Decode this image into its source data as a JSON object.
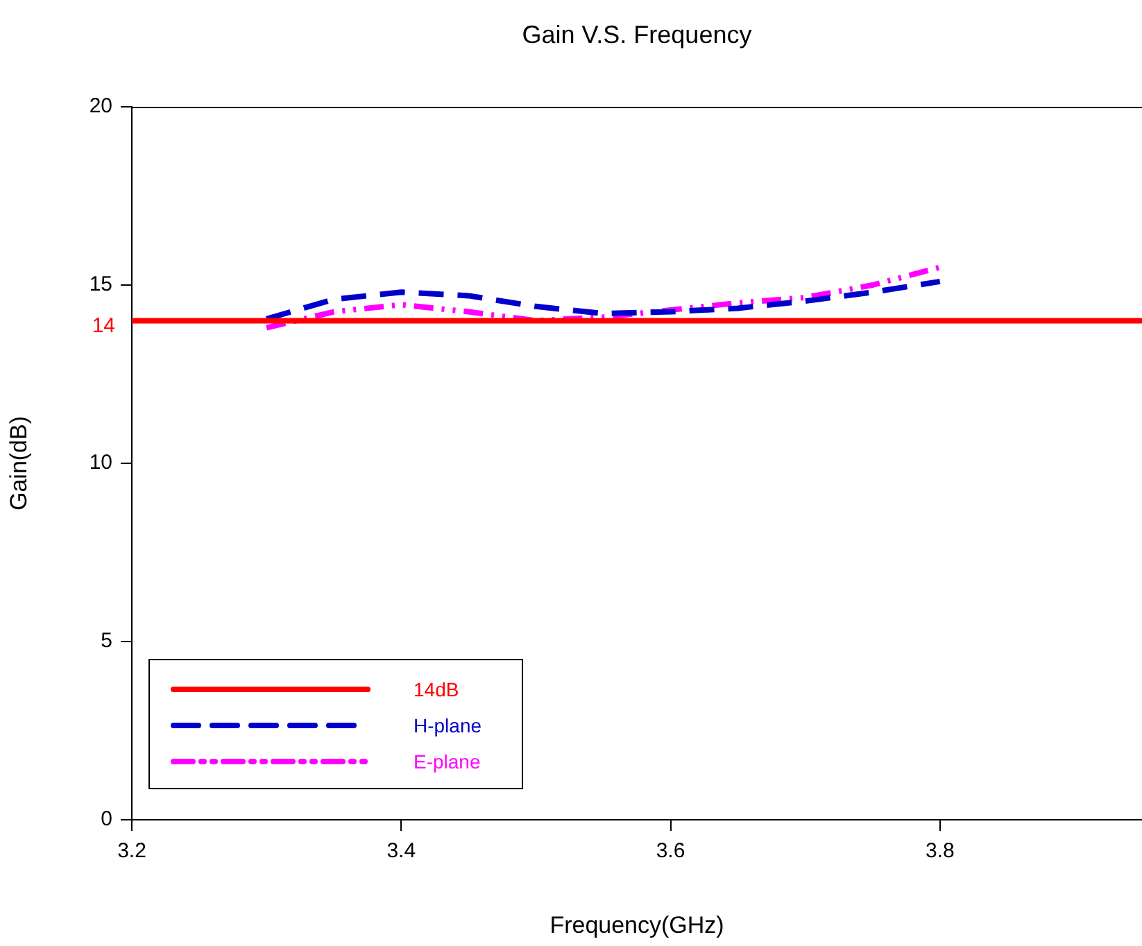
{
  "chart_data": {
    "type": "line",
    "title": "Gain V.S. Frequency",
    "xlabel": "Frequency(GHz)",
    "ylabel": "Gain(dB)",
    "xlim": [
      3.2,
      3.95
    ],
    "xticks": [
      3.2,
      3.4,
      3.6,
      3.8
    ],
    "ylim": [
      0,
      20
    ],
    "yticks": [
      0,
      5,
      10,
      15,
      20
    ],
    "series": [
      {
        "name": "14dB",
        "color": "#ff0000",
        "x": [
          3.2,
          3.95
        ],
        "values": [
          14,
          14
        ],
        "line_style": "solid"
      },
      {
        "name": "H-plane",
        "color": "#0000cc",
        "x": [
          3.3,
          3.35,
          3.4,
          3.45,
          3.5,
          3.55,
          3.6,
          3.65,
          3.7,
          3.75,
          3.8
        ],
        "values": [
          14.05,
          14.6,
          14.8,
          14.7,
          14.4,
          14.2,
          14.25,
          14.35,
          14.55,
          14.8,
          15.1
        ],
        "line_style": "dashed"
      },
      {
        "name": "E-plane",
        "color": "#ff00ff",
        "x": [
          3.3,
          3.35,
          3.4,
          3.45,
          3.5,
          3.55,
          3.6,
          3.65,
          3.7,
          3.75,
          3.8
        ],
        "values": [
          13.8,
          14.25,
          14.45,
          14.25,
          14.0,
          14.1,
          14.3,
          14.5,
          14.65,
          15.0,
          15.5
        ],
        "line_style": "dotted"
      }
    ],
    "annotations": [
      {
        "text": "14",
        "x": 3.2,
        "y": 14
      }
    ],
    "legend": "bottom left",
    "grid": false,
    "marker": "none"
  }
}
